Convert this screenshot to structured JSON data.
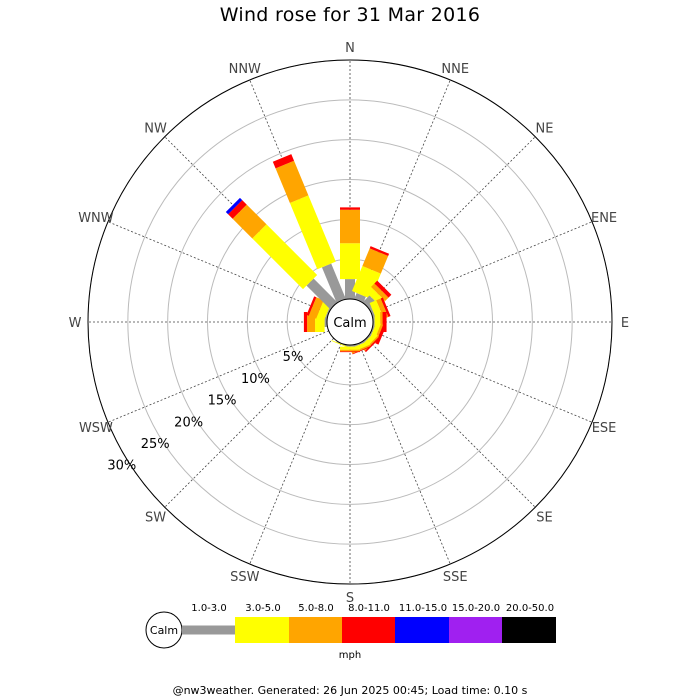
{
  "title": "Wind rose for 31 Mar 2016",
  "footer": "@nw3weather. Generated: 26 Jun 2025 00:45; Load time: 0.10 s",
  "chart_data": {
    "type": "windrose",
    "title": "Wind rose for 31 Mar 2016",
    "directions": [
      "N",
      "NNE",
      "NE",
      "ENE",
      "E",
      "ESE",
      "SE",
      "SSE",
      "S",
      "SSW",
      "SW",
      "WSW",
      "W",
      "WNW",
      "NW",
      "NNW"
    ],
    "radial_ticks": [
      "5%",
      "10%",
      "15%",
      "20%",
      "25%",
      "30%"
    ],
    "radial_max": 30,
    "calm_label": "Calm",
    "legend_unit": "mph",
    "speed_bins": [
      {
        "label": "1.0-3.0",
        "color": "#999999"
      },
      {
        "label": "3.0-5.0",
        "color": "#ffff00"
      },
      {
        "label": "5.0-8.0",
        "color": "#ffa500"
      },
      {
        "label": "8.0-11.0",
        "color": "#ff0000"
      },
      {
        "label": "11.0-15.0",
        "color": "#0000ff"
      },
      {
        "label": "15.0-20.0",
        "color": "#a020f0"
      },
      {
        "label": "20.0-50.0",
        "color": "#000000"
      }
    ],
    "series": [
      {
        "direction": "N",
        "values": [
          2.5,
          4.5,
          4.2,
          0.3,
          0,
          0,
          0
        ]
      },
      {
        "direction": "NNE",
        "values": [
          0.8,
          3.4,
          2.4,
          0.3,
          0,
          0,
          0
        ]
      },
      {
        "direction": "NE",
        "values": [
          1.2,
          0.9,
          0.6,
          0.5,
          0,
          0,
          0
        ]
      },
      {
        "direction": "ENE",
        "values": [
          0.3,
          0.9,
          0.6,
          0.3,
          0,
          0,
          0
        ]
      },
      {
        "direction": "E",
        "values": [
          0.2,
          0.7,
          0.3,
          0.5,
          0,
          0,
          0
        ]
      },
      {
        "direction": "ESE",
        "values": [
          0.2,
          0.6,
          0.3,
          0.4,
          0,
          0,
          0
        ]
      },
      {
        "direction": "SE",
        "values": [
          0.2,
          0.6,
          0.2,
          0.2,
          0,
          0,
          0
        ]
      },
      {
        "direction": "SSE",
        "values": [
          0.2,
          0.5,
          0.2,
          0.1,
          0,
          0,
          0
        ]
      },
      {
        "direction": "S",
        "values": [
          0.2,
          0.4,
          0.2,
          0.1,
          0,
          0,
          0
        ]
      },
      {
        "direction": "SSW",
        "values": [
          0.1,
          0.1,
          0,
          0,
          0,
          0,
          0
        ]
      },
      {
        "direction": "SW",
        "values": [
          0,
          0,
          0,
          0,
          0,
          0,
          0
        ]
      },
      {
        "direction": "WSW",
        "values": [
          0,
          0,
          0,
          0,
          0,
          0,
          0
        ]
      },
      {
        "direction": "W",
        "values": [
          0.3,
          1.2,
          1.0,
          0.4,
          0,
          0,
          0
        ]
      },
      {
        "direction": "WNW",
        "values": [
          0.2,
          1.0,
          1.0,
          0.3,
          0,
          0,
          0
        ]
      },
      {
        "direction": "NW",
        "values": [
          4.2,
          9.0,
          3.5,
          0.8,
          0.4,
          0,
          0
        ]
      },
      {
        "direction": "NNW",
        "values": [
          4.8,
          9.0,
          4.7,
          0.9,
          0,
          0,
          0
        ]
      }
    ]
  }
}
